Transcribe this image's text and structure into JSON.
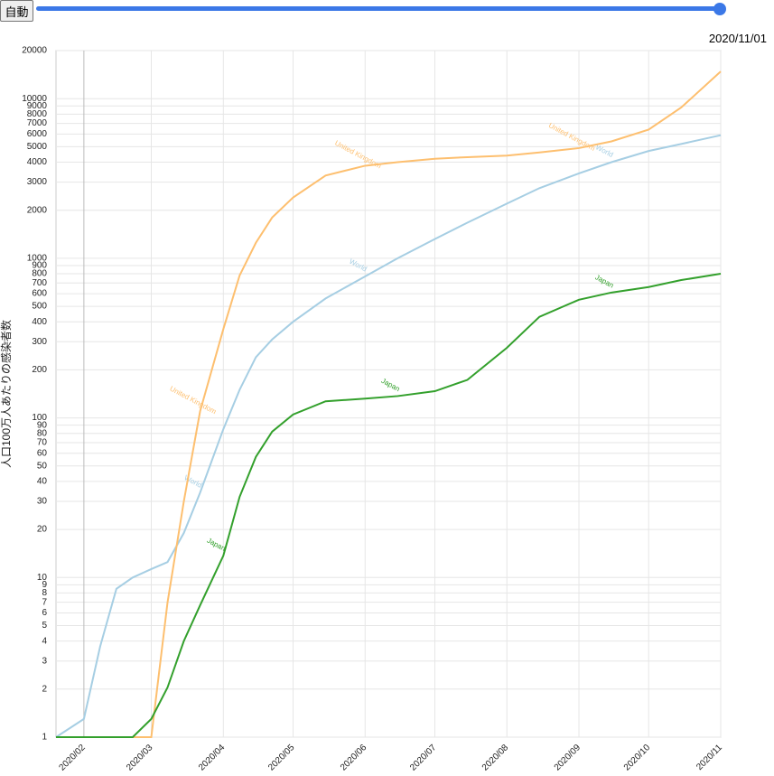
{
  "controls": {
    "button": "自動",
    "current_date": "2020/11/01"
  },
  "chart_data": {
    "type": "line",
    "y_label": "人口100万人あたりの感染者数",
    "log_scale": true,
    "grid": true,
    "x": [
      "2020/01/20",
      "2020/02/01",
      "2020/02/08",
      "2020/02/15",
      "2020/02/22",
      "2020/03/01",
      "2020/03/08",
      "2020/03/15",
      "2020/03/22",
      "2020/04/01",
      "2020/04/08",
      "2020/04/15",
      "2020/04/22",
      "2020/05/01",
      "2020/05/15",
      "2020/06/01",
      "2020/06/15",
      "2020/07/01",
      "2020/07/15",
      "2020/08/01",
      "2020/08/15",
      "2020/09/01",
      "2020/09/15",
      "2020/10/01",
      "2020/10/15",
      "2020/11/01"
    ],
    "series": [
      {
        "name": "World",
        "color": "#a6cee3",
        "values": [
          1,
          1.3,
          3.7,
          8.5,
          10,
          11.3,
          12.5,
          19,
          34,
          85,
          150,
          240,
          310,
          400,
          560,
          770,
          1000,
          1320,
          1670,
          2200,
          2750,
          3400,
          4000,
          4700,
          5200,
          5900
        ]
      },
      {
        "name": "United Kingdom",
        "color": "#fdbf6f",
        "values": [
          1,
          1,
          1,
          1,
          1,
          1,
          7,
          30,
          110,
          360,
          780,
          1250,
          1800,
          2400,
          3300,
          3800,
          4000,
          4200,
          4300,
          4400,
          4600,
          4900,
          5400,
          6400,
          8800,
          14800
        ]
      },
      {
        "name": "Japan",
        "color": "#33a02c",
        "values": [
          1,
          1,
          1,
          1,
          1,
          1.3,
          2.05,
          4,
          6.7,
          13.7,
          32,
          57,
          82,
          105,
          127,
          132,
          137,
          147,
          173,
          275,
          430,
          550,
          610,
          660,
          730,
          800
        ]
      }
    ],
    "xlim": [
      "2020/01/20",
      "2020/11/01"
    ],
    "xticks": [
      {
        "value": "2020/02/01",
        "label": "2020/02"
      },
      {
        "value": "2020/03/01",
        "label": "2020/03"
      },
      {
        "value": "2020/04/01",
        "label": "2020/04"
      },
      {
        "value": "2020/05/01",
        "label": "2020/05"
      },
      {
        "value": "2020/06/01",
        "label": "2020/06"
      },
      {
        "value": "2020/07/01",
        "label": "2020/07"
      },
      {
        "value": "2020/08/01",
        "label": "2020/08"
      },
      {
        "value": "2020/09/01",
        "label": "2020/09"
      },
      {
        "value": "2020/10/01",
        "label": "2020/10"
      },
      {
        "value": "2020/11/01",
        "label": "2020/11"
      }
    ],
    "ylim": [
      1,
      20000
    ],
    "yticks": [
      1,
      2,
      3,
      4,
      5,
      6,
      7,
      8,
      9,
      10,
      20,
      30,
      40,
      50,
      60,
      70,
      80,
      90,
      100,
      200,
      300,
      400,
      500,
      600,
      700,
      800,
      900,
      1000,
      2000,
      3000,
      4000,
      5000,
      6000,
      7000,
      8000,
      9000,
      10000,
      20000
    ]
  }
}
